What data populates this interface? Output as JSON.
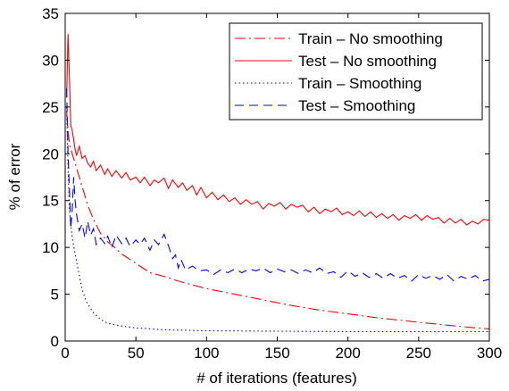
{
  "chart_data": {
    "type": "line",
    "title": "",
    "xlabel": "# of iterations (features)",
    "ylabel": "% of error",
    "xlim": [
      0,
      300
    ],
    "ylim": [
      0,
      35
    ],
    "x_ticks": [
      0,
      50,
      100,
      150,
      200,
      250,
      300
    ],
    "y_ticks": [
      0,
      5,
      10,
      15,
      20,
      25,
      30,
      35
    ],
    "grid": false,
    "legend_position": "top-right",
    "series": [
      {
        "name": "Train – No smoothing",
        "color": "#ff0000",
        "line_style": "dash-dot",
        "points": [
          [
            1,
            24.5
          ],
          [
            2,
            22.5
          ],
          [
            3,
            21
          ],
          [
            5,
            20
          ],
          [
            7,
            19
          ],
          [
            10,
            17.5
          ],
          [
            13,
            16
          ],
          [
            16,
            14.5
          ],
          [
            20,
            13
          ],
          [
            25,
            11.5
          ],
          [
            30,
            10.6
          ],
          [
            35,
            10
          ],
          [
            40,
            9.3
          ],
          [
            50,
            8.3
          ],
          [
            60,
            7.3
          ],
          [
            70,
            6.9
          ],
          [
            80,
            6.4
          ],
          [
            100,
            5.6
          ],
          [
            120,
            5
          ],
          [
            140,
            4.4
          ],
          [
            160,
            3.8
          ],
          [
            180,
            3.3
          ],
          [
            200,
            2.9
          ],
          [
            220,
            2.5
          ],
          [
            250,
            2.0
          ],
          [
            270,
            1.7
          ],
          [
            290,
            1.4
          ],
          [
            300,
            1.3
          ]
        ]
      },
      {
        "name": "Test – No smoothing",
        "color": "#ff0000",
        "line_style": "solid",
        "points": [
          [
            1,
            26
          ],
          [
            2,
            32.8
          ],
          [
            3,
            28
          ],
          [
            4,
            23
          ],
          [
            5,
            22.5
          ],
          [
            6,
            21.5
          ],
          [
            7,
            20.5
          ],
          [
            8,
            19.8
          ],
          [
            10,
            20.8
          ],
          [
            12,
            19.5
          ],
          [
            14,
            19.8
          ],
          [
            16,
            19
          ],
          [
            18,
            18.6
          ],
          [
            20,
            19.2
          ],
          [
            22,
            18.2
          ],
          [
            25,
            18.8
          ],
          [
            28,
            17.8
          ],
          [
            30,
            18.4
          ],
          [
            33,
            17.6
          ],
          [
            36,
            18.2
          ],
          [
            40,
            17.4
          ],
          [
            43,
            18
          ],
          [
            46,
            17.2
          ],
          [
            50,
            17.5
          ],
          [
            53,
            16.9
          ],
          [
            56,
            17.5
          ],
          [
            60,
            16.6
          ],
          [
            63,
            17.2
          ],
          [
            66,
            16.9
          ],
          [
            70,
            17.4
          ],
          [
            73,
            16.3
          ],
          [
            76,
            17.2
          ],
          [
            80,
            16.4
          ],
          [
            83,
            16.9
          ],
          [
            86,
            16.1
          ],
          [
            90,
            16.6
          ],
          [
            93,
            15.6
          ],
          [
            96,
            16.4
          ],
          [
            100,
            15.3
          ],
          [
            104,
            15.9
          ],
          [
            108,
            15.1
          ],
          [
            112,
            15.6
          ],
          [
            116,
            14.9
          ],
          [
            120,
            15.3
          ],
          [
            124,
            14.6
          ],
          [
            128,
            15.1
          ],
          [
            132,
            14.6
          ],
          [
            136,
            14.9
          ],
          [
            140,
            14.1
          ],
          [
            144,
            14.7
          ],
          [
            148,
            14.4
          ],
          [
            152,
            14.8
          ],
          [
            156,
            14.1
          ],
          [
            160,
            14.6
          ],
          [
            164,
            14.3
          ],
          [
            168,
            14.5
          ],
          [
            172,
            13.8
          ],
          [
            176,
            14.3
          ],
          [
            180,
            13.6
          ],
          [
            184,
            14.1
          ],
          [
            188,
            13.8
          ],
          [
            192,
            14.2
          ],
          [
            196,
            13.5
          ],
          [
            200,
            13.8
          ],
          [
            204,
            13.4
          ],
          [
            208,
            13.9
          ],
          [
            212,
            13.3
          ],
          [
            216,
            13.8
          ],
          [
            220,
            13.2
          ],
          [
            224,
            13.6
          ],
          [
            228,
            13.1
          ],
          [
            232,
            13.5
          ],
          [
            236,
            12.9
          ],
          [
            240,
            13.4
          ],
          [
            244,
            13.1
          ],
          [
            248,
            13.5
          ],
          [
            252,
            12.9
          ],
          [
            256,
            13.4
          ],
          [
            260,
            13.0
          ],
          [
            264,
            13.2
          ],
          [
            268,
            12.6
          ],
          [
            272,
            13.1
          ],
          [
            276,
            12.6
          ],
          [
            280,
            13.0
          ],
          [
            284,
            12.4
          ],
          [
            288,
            12.8
          ],
          [
            292,
            12.5
          ],
          [
            296,
            13.0
          ],
          [
            300,
            12.9
          ]
        ]
      },
      {
        "name": "Train – Smoothing",
        "color": "#0000ff",
        "line_style": "dotted",
        "points": [
          [
            1,
            25
          ],
          [
            2,
            18.5
          ],
          [
            3,
            14
          ],
          [
            5,
            11
          ],
          [
            8,
            8.5
          ],
          [
            10,
            7
          ],
          [
            12,
            5.5
          ],
          [
            15,
            4.2
          ],
          [
            20,
            3
          ],
          [
            25,
            2.3
          ],
          [
            30,
            1.9
          ],
          [
            40,
            1.6
          ],
          [
            50,
            1.4
          ],
          [
            70,
            1.2
          ],
          [
            100,
            1.1
          ],
          [
            150,
            1.05
          ],
          [
            200,
            1.0
          ],
          [
            250,
            1.0
          ],
          [
            300,
            1.0
          ]
        ]
      },
      {
        "name": "Test – Smoothing",
        "color": "#0000ff",
        "line_style": "dashed",
        "points": [
          [
            1,
            27
          ],
          [
            2,
            20
          ],
          [
            3,
            16
          ],
          [
            4,
            12
          ],
          [
            5,
            14
          ],
          [
            6,
            17.5
          ],
          [
            7,
            15
          ],
          [
            8,
            13.5
          ],
          [
            10,
            11.8
          ],
          [
            12,
            12.5
          ],
          [
            14,
            11
          ],
          [
            16,
            12.8
          ],
          [
            18,
            11.3
          ],
          [
            20,
            12
          ],
          [
            22,
            10.3
          ],
          [
            25,
            11
          ],
          [
            28,
            10.4
          ],
          [
            30,
            11.2
          ],
          [
            33,
            10
          ],
          [
            36,
            11.3
          ],
          [
            40,
            10.4
          ],
          [
            43,
            11
          ],
          [
            46,
            10.1
          ],
          [
            50,
            10.8
          ],
          [
            53,
            10.3
          ],
          [
            56,
            11
          ],
          [
            60,
            9.7
          ],
          [
            63,
            10.8
          ],
          [
            66,
            10.3
          ],
          [
            70,
            11.4
          ],
          [
            73,
            10.2
          ],
          [
            76,
            8.8
          ],
          [
            78,
            9.2
          ],
          [
            80,
            7.8
          ],
          [
            82,
            8.7
          ],
          [
            85,
            7.6
          ],
          [
            90,
            8.0
          ],
          [
            95,
            7.5
          ],
          [
            100,
            7.6
          ],
          [
            105,
            7.1
          ],
          [
            110,
            7.6
          ],
          [
            115,
            7.3
          ],
          [
            120,
            7.7
          ],
          [
            125,
            7.3
          ],
          [
            130,
            7.7
          ],
          [
            135,
            7.5
          ],
          [
            140,
            7.8
          ],
          [
            145,
            7.3
          ],
          [
            150,
            7.7
          ],
          [
            155,
            7.4
          ],
          [
            160,
            7.6
          ],
          [
            165,
            7.2
          ],
          [
            170,
            7.6
          ],
          [
            175,
            7.3
          ],
          [
            180,
            7.8
          ],
          [
            185,
            7.2
          ],
          [
            190,
            7.4
          ],
          [
            195,
            6.8
          ],
          [
            200,
            7.5
          ],
          [
            205,
            6.9
          ],
          [
            210,
            7.3
          ],
          [
            215,
            6.8
          ],
          [
            220,
            7.2
          ],
          [
            225,
            6.7
          ],
          [
            230,
            7.2
          ],
          [
            235,
            6.7
          ],
          [
            240,
            7.0
          ],
          [
            245,
            6.4
          ],
          [
            250,
            7.1
          ],
          [
            255,
            6.7
          ],
          [
            260,
            7.0
          ],
          [
            265,
            6.6
          ],
          [
            270,
            7.1
          ],
          [
            275,
            6.4
          ],
          [
            280,
            6.9
          ],
          [
            285,
            6.6
          ],
          [
            290,
            7.0
          ],
          [
            295,
            6.4
          ],
          [
            300,
            6.6
          ]
        ]
      }
    ]
  }
}
